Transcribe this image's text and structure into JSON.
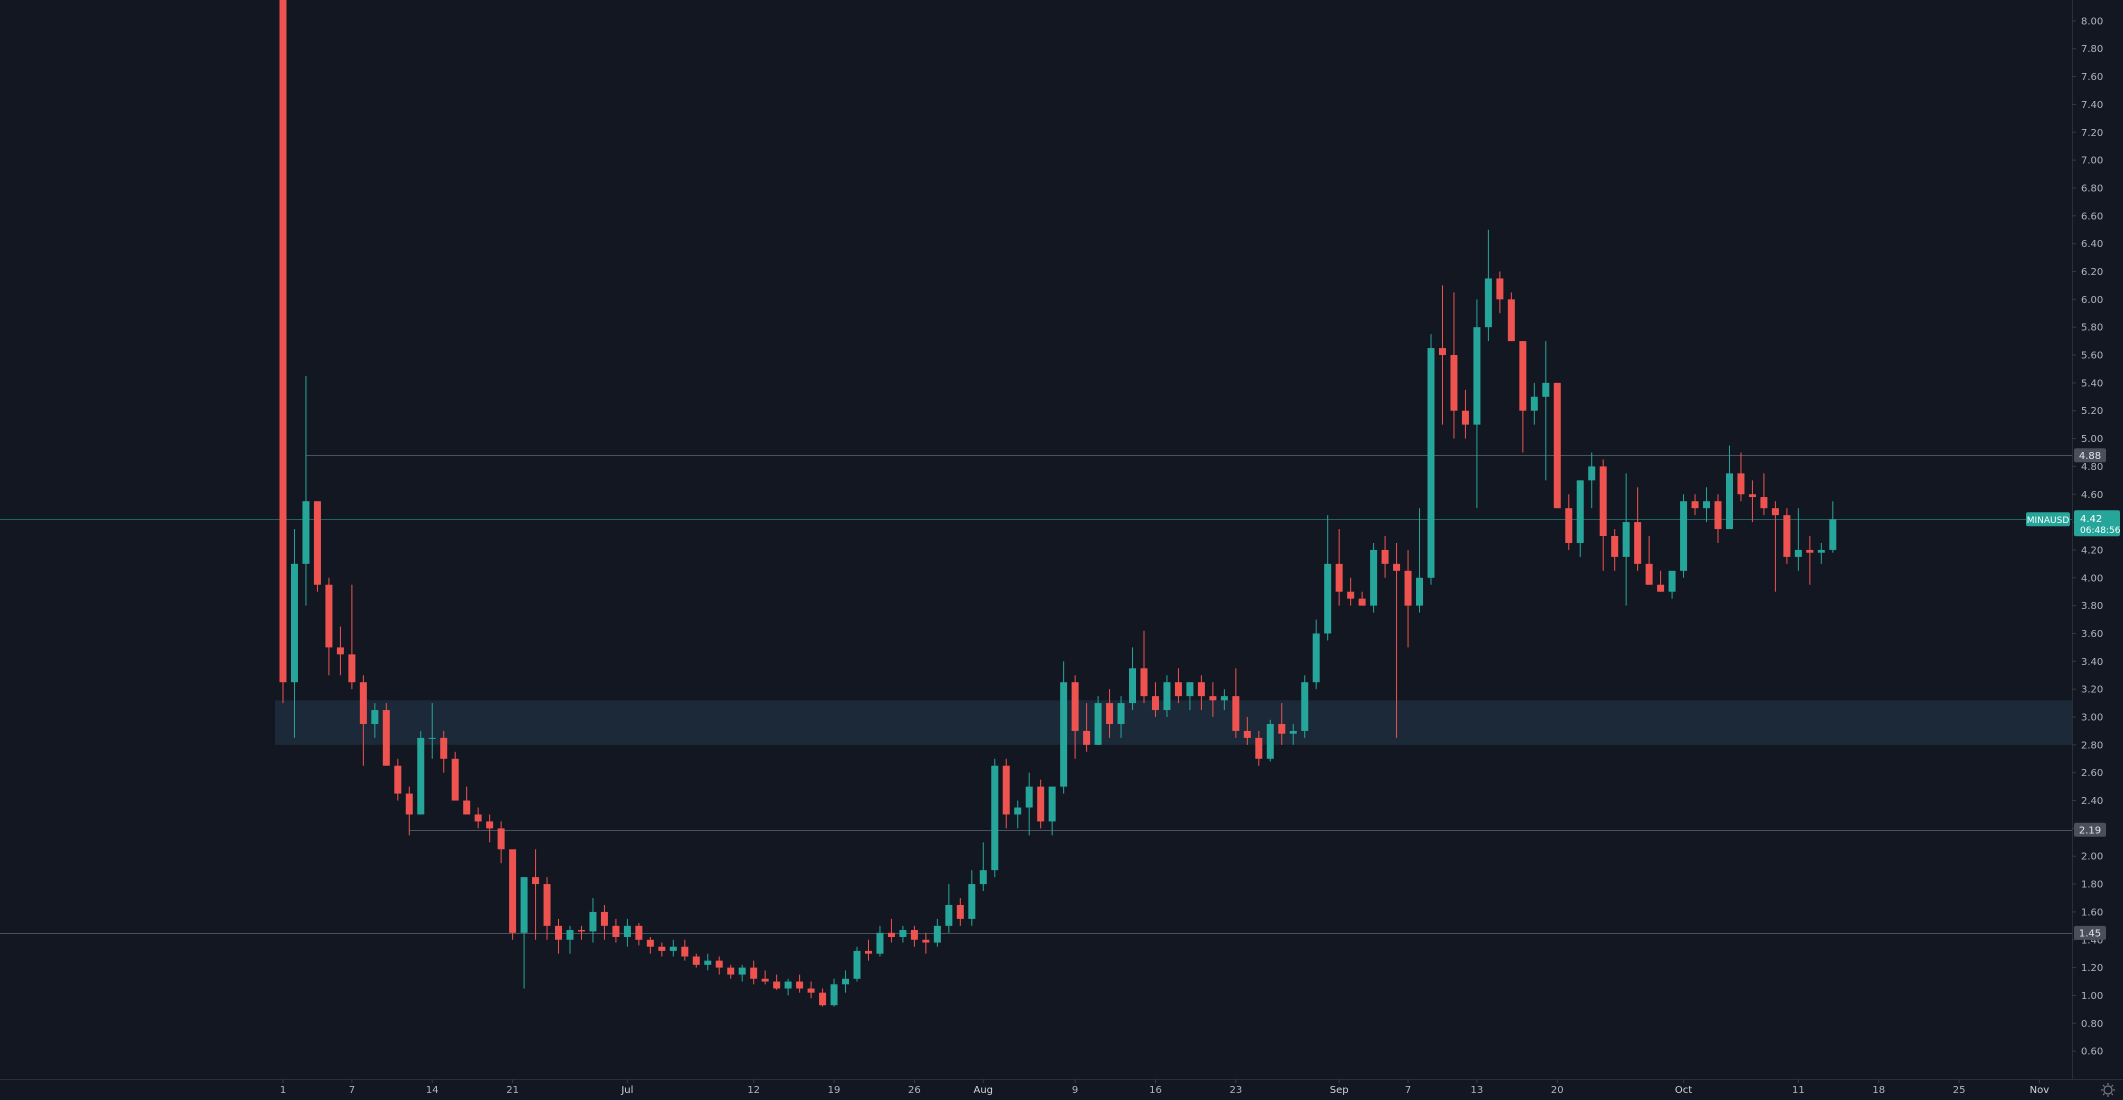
{
  "symbol": "MINAUSD",
  "chart_data": {
    "type": "candlestick",
    "y_axis": {
      "min": 0.4,
      "max": 8.15,
      "ticks": [
        "0.60",
        "0.80",
        "1.00",
        "1.20",
        "1.40",
        "1.60",
        "1.80",
        "2.00",
        "2.20",
        "2.40",
        "2.60",
        "2.80",
        "3.00",
        "3.20",
        "3.40",
        "3.60",
        "3.80",
        "4.00",
        "4.20",
        "4.40",
        "4.60",
        "4.80",
        "5.00",
        "5.20",
        "5.40",
        "5.60",
        "5.80",
        "6.00",
        "6.20",
        "6.40",
        "6.60",
        "6.80",
        "7.00",
        "7.20",
        "7.40",
        "7.60",
        "7.80",
        "8.00"
      ]
    },
    "x_axis": {
      "labels": [
        {
          "label": "1",
          "idx": 0
        },
        {
          "label": "7",
          "idx": 6
        },
        {
          "label": "14",
          "idx": 13
        },
        {
          "label": "21",
          "idx": 20
        },
        {
          "label": "Jul",
          "idx": 30,
          "strong": true
        },
        {
          "label": "12",
          "idx": 41
        },
        {
          "label": "19",
          "idx": 48
        },
        {
          "label": "26",
          "idx": 55
        },
        {
          "label": "Aug",
          "idx": 61,
          "strong": true
        },
        {
          "label": "9",
          "idx": 69
        },
        {
          "label": "16",
          "idx": 76
        },
        {
          "label": "23",
          "idx": 83
        },
        {
          "label": "Sep",
          "idx": 92,
          "strong": true
        },
        {
          "label": "7",
          "idx": 98
        },
        {
          "label": "13",
          "idx": 104
        },
        {
          "label": "20",
          "idx": 111
        },
        {
          "label": "Oct",
          "idx": 122,
          "strong": true
        },
        {
          "label": "11",
          "idx": 132
        },
        {
          "label": "18",
          "idx": 139
        },
        {
          "label": "25",
          "idx": 146
        },
        {
          "label": "Nov",
          "idx": 153,
          "strong": true
        }
      ]
    },
    "candles": [
      [
        9.0,
        9.0,
        3.1,
        3.25
      ],
      [
        3.25,
        4.35,
        2.85,
        4.1
      ],
      [
        4.1,
        5.45,
        3.8,
        4.55
      ],
      [
        4.55,
        4.55,
        3.9,
        3.95
      ],
      [
        3.95,
        4.0,
        3.3,
        3.5
      ],
      [
        3.5,
        3.65,
        3.3,
        3.45
      ],
      [
        3.45,
        3.95,
        3.2,
        3.25
      ],
      [
        3.25,
        3.3,
        2.65,
        2.95
      ],
      [
        2.95,
        3.1,
        2.85,
        3.05
      ],
      [
        3.05,
        3.1,
        2.7,
        2.65
      ],
      [
        2.65,
        2.7,
        2.4,
        2.45
      ],
      [
        2.45,
        2.5,
        2.15,
        2.3
      ],
      [
        2.3,
        2.9,
        2.3,
        2.85
      ],
      [
        2.85,
        3.1,
        2.7,
        2.85
      ],
      [
        2.85,
        2.9,
        2.6,
        2.7
      ],
      [
        2.7,
        2.75,
        2.4,
        2.4
      ],
      [
        2.4,
        2.5,
        2.3,
        2.3
      ],
      [
        2.3,
        2.35,
        2.2,
        2.25
      ],
      [
        2.25,
        2.3,
        2.1,
        2.2
      ],
      [
        2.2,
        2.25,
        1.95,
        2.05
      ],
      [
        2.05,
        2.0,
        1.4,
        1.45
      ],
      [
        1.45,
        1.85,
        1.05,
        1.85
      ],
      [
        1.85,
        2.05,
        1.4,
        1.8
      ],
      [
        1.8,
        1.85,
        1.4,
        1.5
      ],
      [
        1.5,
        1.55,
        1.3,
        1.4
      ],
      [
        1.4,
        1.5,
        1.3,
        1.47
      ],
      [
        1.47,
        1.5,
        1.4,
        1.46
      ],
      [
        1.46,
        1.7,
        1.38,
        1.6
      ],
      [
        1.6,
        1.65,
        1.4,
        1.5
      ],
      [
        1.5,
        1.55,
        1.38,
        1.42
      ],
      [
        1.42,
        1.55,
        1.35,
        1.5
      ],
      [
        1.5,
        1.52,
        1.36,
        1.4
      ],
      [
        1.4,
        1.42,
        1.3,
        1.35
      ],
      [
        1.35,
        1.38,
        1.28,
        1.32
      ],
      [
        1.32,
        1.4,
        1.28,
        1.35
      ],
      [
        1.35,
        1.4,
        1.25,
        1.28
      ],
      [
        1.28,
        1.3,
        1.2,
        1.22
      ],
      [
        1.22,
        1.3,
        1.18,
        1.25
      ],
      [
        1.25,
        1.28,
        1.15,
        1.2
      ],
      [
        1.2,
        1.22,
        1.12,
        1.15
      ],
      [
        1.15,
        1.22,
        1.1,
        1.2
      ],
      [
        1.2,
        1.25,
        1.08,
        1.12
      ],
      [
        1.12,
        1.18,
        1.08,
        1.1
      ],
      [
        1.1,
        1.15,
        1.04,
        1.05
      ],
      [
        1.05,
        1.12,
        1.0,
        1.1
      ],
      [
        1.1,
        1.15,
        1.02,
        1.05
      ],
      [
        1.05,
        1.1,
        0.98,
        1.02
      ],
      [
        1.02,
        1.05,
        0.92,
        0.93
      ],
      [
        0.93,
        1.12,
        0.92,
        1.08
      ],
      [
        1.08,
        1.18,
        1.02,
        1.12
      ],
      [
        1.12,
        1.35,
        1.1,
        1.32
      ],
      [
        1.32,
        1.4,
        1.25,
        1.3
      ],
      [
        1.3,
        1.5,
        1.28,
        1.45
      ],
      [
        1.45,
        1.55,
        1.38,
        1.42
      ],
      [
        1.42,
        1.5,
        1.38,
        1.47
      ],
      [
        1.47,
        1.5,
        1.35,
        1.4
      ],
      [
        1.4,
        1.45,
        1.3,
        1.38
      ],
      [
        1.38,
        1.55,
        1.35,
        1.5
      ],
      [
        1.5,
        1.8,
        1.45,
        1.65
      ],
      [
        1.65,
        1.7,
        1.5,
        1.55
      ],
      [
        1.55,
        1.9,
        1.5,
        1.8
      ],
      [
        1.8,
        2.1,
        1.75,
        1.9
      ],
      [
        1.9,
        2.7,
        1.85,
        2.65
      ],
      [
        2.65,
        2.7,
        2.2,
        2.3
      ],
      [
        2.3,
        2.4,
        2.2,
        2.35
      ],
      [
        2.35,
        2.6,
        2.15,
        2.5
      ],
      [
        2.5,
        2.55,
        2.2,
        2.25
      ],
      [
        2.25,
        2.5,
        2.15,
        2.5
      ],
      [
        2.5,
        3.4,
        2.45,
        3.25
      ],
      [
        3.25,
        3.3,
        2.7,
        2.9
      ],
      [
        2.9,
        3.1,
        2.75,
        2.8
      ],
      [
        2.8,
        3.15,
        2.8,
        3.1
      ],
      [
        3.1,
        3.2,
        2.85,
        2.95
      ],
      [
        2.95,
        3.15,
        2.85,
        3.1
      ],
      [
        3.1,
        3.5,
        3.05,
        3.35
      ],
      [
        3.35,
        3.62,
        3.1,
        3.15
      ],
      [
        3.15,
        3.25,
        3.0,
        3.05
      ],
      [
        3.05,
        3.3,
        3.0,
        3.25
      ],
      [
        3.25,
        3.35,
        3.1,
        3.15
      ],
      [
        3.15,
        3.25,
        3.05,
        3.25
      ],
      [
        3.25,
        3.3,
        3.05,
        3.15
      ],
      [
        3.15,
        3.25,
        3.0,
        3.12
      ],
      [
        3.12,
        3.2,
        3.05,
        3.15
      ],
      [
        3.15,
        3.35,
        2.85,
        2.9
      ],
      [
        2.9,
        3.0,
        2.8,
        2.85
      ],
      [
        2.85,
        2.9,
        2.65,
        2.7
      ],
      [
        2.7,
        2.98,
        2.68,
        2.95
      ],
      [
        2.95,
        3.1,
        2.8,
        2.88
      ],
      [
        2.88,
        2.95,
        2.8,
        2.9
      ],
      [
        2.9,
        3.3,
        2.85,
        3.25
      ],
      [
        3.25,
        3.7,
        3.2,
        3.6
      ],
      [
        3.6,
        4.45,
        3.55,
        4.1
      ],
      [
        4.1,
        4.35,
        3.8,
        3.9
      ],
      [
        3.9,
        4.0,
        3.8,
        3.85
      ],
      [
        3.85,
        3.9,
        3.8,
        3.8
      ],
      [
        3.8,
        4.25,
        3.75,
        4.2
      ],
      [
        4.2,
        4.3,
        4.0,
        4.1
      ],
      [
        4.1,
        4.25,
        2.85,
        4.05
      ],
      [
        4.05,
        4.2,
        3.5,
        3.8
      ],
      [
        3.8,
        4.5,
        3.75,
        4.0
      ],
      [
        4.0,
        5.75,
        3.95,
        5.65
      ],
      [
        5.65,
        6.1,
        5.1,
        5.6
      ],
      [
        5.6,
        6.05,
        5.0,
        5.2
      ],
      [
        5.2,
        5.35,
        5.0,
        5.1
      ],
      [
        5.1,
        6.0,
        4.5,
        5.8
      ],
      [
        5.8,
        6.5,
        5.7,
        6.15
      ],
      [
        6.15,
        6.2,
        5.9,
        6.0
      ],
      [
        6.0,
        6.05,
        5.7,
        5.7
      ],
      [
        5.7,
        5.7,
        4.9,
        5.2
      ],
      [
        5.2,
        5.4,
        5.1,
        5.3
      ],
      [
        5.3,
        5.7,
        4.7,
        5.4
      ],
      [
        5.4,
        5.4,
        4.5,
        4.5
      ],
      [
        4.5,
        4.6,
        4.2,
        4.25
      ],
      [
        4.25,
        4.7,
        4.15,
        4.7
      ],
      [
        4.7,
        4.9,
        4.5,
        4.8
      ],
      [
        4.8,
        4.85,
        4.05,
        4.3
      ],
      [
        4.3,
        4.35,
        4.05,
        4.15
      ],
      [
        4.15,
        4.75,
        3.8,
        4.4
      ],
      [
        4.4,
        4.65,
        4.05,
        4.1
      ],
      [
        4.1,
        4.3,
        3.95,
        3.95
      ],
      [
        3.95,
        4.05,
        3.9,
        3.9
      ],
      [
        3.9,
        4.05,
        3.85,
        4.05
      ],
      [
        4.05,
        4.6,
        4.0,
        4.55
      ],
      [
        4.55,
        4.6,
        4.45,
        4.5
      ],
      [
        4.5,
        4.65,
        4.4,
        4.55
      ],
      [
        4.55,
        4.6,
        4.25,
        4.35
      ],
      [
        4.35,
        4.95,
        4.35,
        4.75
      ],
      [
        4.75,
        4.9,
        4.55,
        4.6
      ],
      [
        4.6,
        4.7,
        4.4,
        4.58
      ],
      [
        4.58,
        4.75,
        4.45,
        4.5
      ],
      [
        4.5,
        4.55,
        3.9,
        4.45
      ],
      [
        4.45,
        4.5,
        4.1,
        4.15
      ],
      [
        4.15,
        4.5,
        4.05,
        4.2
      ],
      [
        4.2,
        4.3,
        3.95,
        4.18
      ],
      [
        4.18,
        4.25,
        4.1,
        4.2
      ],
      [
        4.2,
        4.55,
        4.18,
        4.42
      ]
    ],
    "horizontal_lines": [
      {
        "value": 4.88,
        "label": "4.88"
      },
      {
        "value": 2.19,
        "label": "2.19"
      },
      {
        "value": 1.45,
        "label": "1.45"
      }
    ],
    "zone": {
      "from": 2.8,
      "to": 3.12
    },
    "current_price": {
      "value": 4.42,
      "label": "4.42",
      "countdown": "06:48:56"
    },
    "colors": {
      "background": "#131722",
      "up": "#26a69a",
      "down": "#ef5350",
      "level_line": "#4a5260",
      "zone": "#1e2d3d",
      "axis_text": "#b2b5be",
      "price_tag": "#26a69a"
    }
  }
}
